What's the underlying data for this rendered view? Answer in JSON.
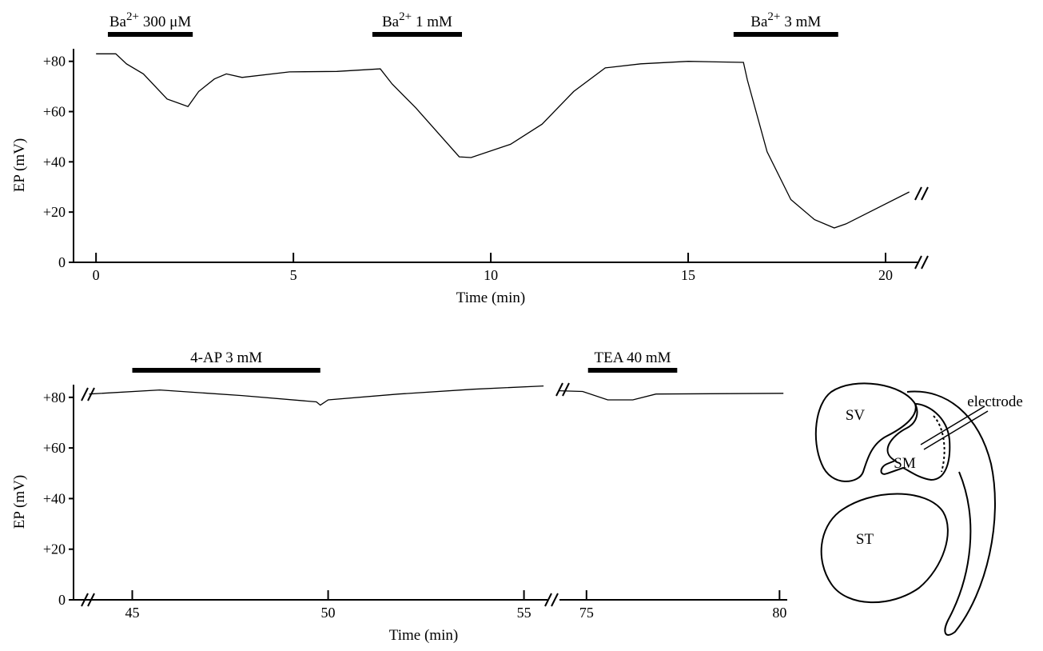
{
  "chart_data": [
    {
      "type": "line",
      "xlabel": "Time (min)",
      "ylabel": "EP (mV)",
      "ylim": [
        0,
        85
      ],
      "yticks": [
        0,
        {
          "value": 20,
          "label": "+20"
        },
        {
          "value": 40,
          "label": "+40"
        },
        {
          "value": 60,
          "label": "+60"
        },
        {
          "value": 80,
          "label": "+80"
        }
      ],
      "color": "#000000",
      "segments": [
        {
          "xlim": [
            -0.57,
            20.85
          ],
          "xticks": [
            0,
            5,
            10,
            15,
            20
          ],
          "x": [
            0,
            0.5,
            0.77,
            1.2,
            1.8,
            2.33,
            2.6,
            3.0,
            3.3,
            3.7,
            4.9,
            6.1,
            7.2,
            7.5,
            8.1,
            9.2,
            9.5,
            10.5,
            11.3,
            12.1,
            12.9,
            13.8,
            15,
            16.4,
            16.5,
            17,
            17.6,
            18.2,
            18.7,
            19,
            20.6
          ],
          "values": [
            83,
            83,
            79,
            75,
            65,
            62,
            68,
            73,
            75,
            73.6,
            75.8,
            76,
            77,
            71,
            61.5,
            42,
            41.7,
            47,
            55,
            68,
            77.4,
            79,
            80,
            79.6,
            72.6,
            44,
            25,
            17,
            13.7,
            15.3,
            28
          ]
        }
      ],
      "annotations": [
        {
          "ion": "Ba",
          "charge": "2+",
          "label": "300 μM",
          "start": 0.3,
          "end": 2.45
        },
        {
          "ion": "Ba",
          "charge": "2+",
          "label": "1 mM",
          "start": 7.0,
          "end": 9.27
        },
        {
          "ion": "Ba",
          "charge": "2+",
          "label": "3 mM",
          "start": 16.15,
          "end": 18.8
        }
      ]
    },
    {
      "type": "line",
      "xlabel": "Time (min)",
      "ylabel": "EP (mV)",
      "ylim": [
        0,
        85
      ],
      "yticks": [
        0,
        {
          "value": 20,
          "label": "+20"
        },
        {
          "value": 40,
          "label": "+40"
        },
        {
          "value": 60,
          "label": "+60"
        },
        {
          "value": 80,
          "label": "+80"
        }
      ],
      "color": "#000000",
      "segments": [
        {
          "xlim": [
            43.5,
            55.6
          ],
          "xticks": [
            45,
            50,
            55
          ],
          "x": [
            43.9,
            45.7,
            47.8,
            49.7,
            49.8,
            50,
            51.8,
            53.7,
            55.5
          ],
          "values": [
            81.3,
            82.9,
            80.7,
            78.2,
            76.9,
            79,
            81.3,
            83.2,
            84.5
          ]
        },
        {
          "xlim": [
            74.3,
            80.2
          ],
          "xticks": [
            75,
            80
          ],
          "x": [
            74.3,
            74.9,
            75.55,
            76.2,
            76.8,
            80.1
          ],
          "values": [
            82.6,
            82.3,
            79,
            79,
            81.3,
            81.6
          ]
        }
      ],
      "annotations": [
        {
          "label": "4-AP 3 mM",
          "start": 45.0,
          "end": 49.8
        },
        {
          "label": "TEA 40 mM",
          "start": 75.04,
          "end": 77.35
        }
      ]
    }
  ],
  "diagram": {
    "labels": [
      "SV",
      "SM",
      "ST",
      "electrode"
    ]
  }
}
